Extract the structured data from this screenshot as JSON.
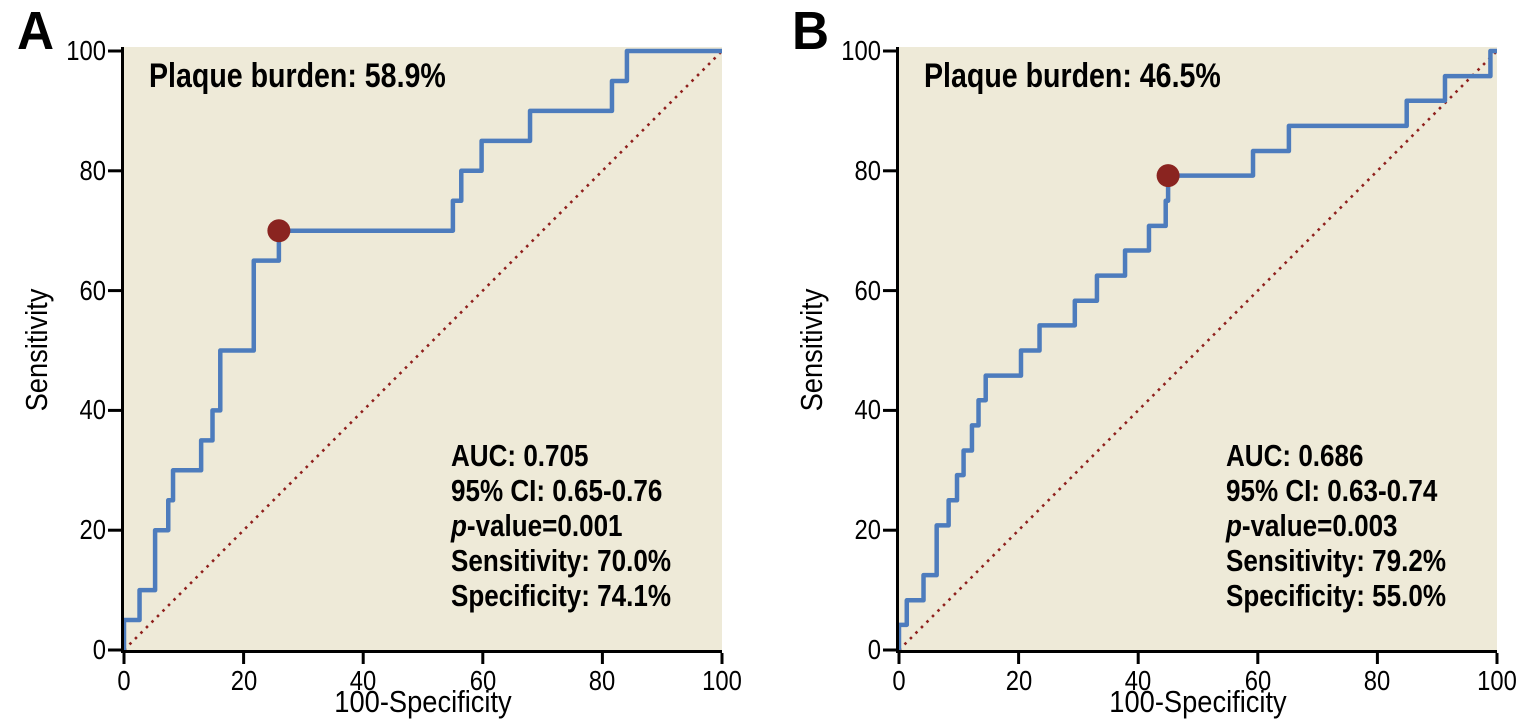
{
  "page": {
    "background": "#ffffff",
    "text_color": "#000000"
  },
  "panels": [
    {
      "letter": "A",
      "title": "Plaque burden: 58.9%",
      "x_axis_label": "100-Specificity",
      "y_axis_label": "Sensitivity",
      "stats": {
        "auc": "AUC: 0.705",
        "ci": "95% CI: 0.65-0.76",
        "p_italic": "p",
        "p_rest": "-value=0.001",
        "sensitivity": "Sensitivity: 70.0%",
        "specificity": "Specificity: 74.1%"
      }
    },
    {
      "letter": "B",
      "title": "Plaque burden: 46.5%",
      "x_axis_label": "100-Specificity",
      "y_axis_label": "Sensitivity",
      "stats": {
        "auc": "AUC: 0.686",
        "ci": "95% CI: 0.63-0.74",
        "p_italic": "p",
        "p_rest": "-value=0.003",
        "sensitivity": "Sensitivity: 79.2%",
        "specificity": "Specificity: 55.0%"
      }
    }
  ],
  "chart_data": [
    {
      "type": "line",
      "subtype": "roc_step_curve",
      "panel_label": "A",
      "title": "Plaque burden: 58.9%",
      "xlabel": "100-Specificity",
      "ylabel": "Sensitivity",
      "xlim": [
        0,
        100
      ],
      "ylim": [
        0,
        100
      ],
      "x_ticks": [
        0,
        20,
        40,
        60,
        80,
        100
      ],
      "y_ticks": [
        0,
        20,
        40,
        60,
        80,
        100
      ],
      "grid": false,
      "legend": "none",
      "plot_bg_color": "#eeead8",
      "curve_color": "#4d7cbd",
      "diagonal_color": "#8f201d",
      "marker_color": "#8a2420",
      "axis_color": "#000000",
      "roc_points": [
        [
          0,
          0
        ],
        [
          0,
          5
        ],
        [
          2.6,
          5
        ],
        [
          2.6,
          10
        ],
        [
          5.2,
          10
        ],
        [
          5.2,
          20
        ],
        [
          7.4,
          20
        ],
        [
          7.4,
          25
        ],
        [
          8.2,
          25
        ],
        [
          8.2,
          30
        ],
        [
          12.9,
          30
        ],
        [
          12.9,
          35
        ],
        [
          14.8,
          35
        ],
        [
          14.8,
          40
        ],
        [
          16.1,
          40
        ],
        [
          16.1,
          50
        ],
        [
          21.7,
          50
        ],
        [
          21.7,
          65
        ],
        [
          25.9,
          65
        ],
        [
          25.9,
          70
        ],
        [
          55,
          70
        ],
        [
          55,
          75
        ],
        [
          56.4,
          75
        ],
        [
          56.4,
          80
        ],
        [
          59.8,
          80
        ],
        [
          59.8,
          85
        ],
        [
          67.9,
          85
        ],
        [
          67.9,
          90
        ],
        [
          81.6,
          90
        ],
        [
          81.6,
          95
        ],
        [
          84.1,
          95
        ],
        [
          84.1,
          100
        ],
        [
          100,
          100
        ]
      ],
      "optimal_cutoff_point": {
        "x": 25.9,
        "y": 70.0
      },
      "reference_diagonal": [
        [
          0,
          0
        ],
        [
          100,
          100
        ]
      ],
      "annotations": [
        "Plaque burden: 58.9%",
        "AUC: 0.705",
        "95% CI: 0.65-0.76",
        "p-value=0.001",
        "Sensitivity: 70.0%",
        "Specificity: 74.1%"
      ]
    },
    {
      "type": "line",
      "subtype": "roc_step_curve",
      "panel_label": "B",
      "title": "Plaque burden: 46.5%",
      "xlabel": "100-Specificity",
      "ylabel": "Sensitivity",
      "xlim": [
        0,
        100
      ],
      "ylim": [
        0,
        100
      ],
      "x_ticks": [
        0,
        20,
        40,
        60,
        80,
        100
      ],
      "y_ticks": [
        0,
        20,
        40,
        60,
        80,
        100
      ],
      "grid": false,
      "legend": "none",
      "plot_bg_color": "#eeead8",
      "curve_color": "#4d7cbd",
      "diagonal_color": "#8f201d",
      "marker_color": "#8a2420",
      "axis_color": "#000000",
      "roc_points": [
        [
          0,
          0
        ],
        [
          0,
          4.2
        ],
        [
          1.3,
          4.2
        ],
        [
          1.3,
          8.3
        ],
        [
          4.1,
          8.3
        ],
        [
          4.1,
          12.5
        ],
        [
          6.3,
          12.5
        ],
        [
          6.3,
          20.8
        ],
        [
          8.3,
          20.8
        ],
        [
          8.3,
          25
        ],
        [
          9.7,
          25
        ],
        [
          9.7,
          29.2
        ],
        [
          10.8,
          29.2
        ],
        [
          10.8,
          33.3
        ],
        [
          12.2,
          33.3
        ],
        [
          12.2,
          37.5
        ],
        [
          13.3,
          37.5
        ],
        [
          13.3,
          41.7
        ],
        [
          14.5,
          41.7
        ],
        [
          14.5,
          45.8
        ],
        [
          20.4,
          45.8
        ],
        [
          20.4,
          50
        ],
        [
          23.5,
          50
        ],
        [
          23.5,
          54.2
        ],
        [
          29.4,
          54.2
        ],
        [
          29.4,
          58.3
        ],
        [
          33.1,
          58.3
        ],
        [
          33.1,
          62.5
        ],
        [
          37.8,
          62.5
        ],
        [
          37.8,
          66.7
        ],
        [
          41.8,
          66.7
        ],
        [
          41.8,
          70.8
        ],
        [
          44.6,
          70.8
        ],
        [
          44.6,
          75
        ],
        [
          45,
          75
        ],
        [
          45,
          79.2
        ],
        [
          59.2,
          79.2
        ],
        [
          59.2,
          83.3
        ],
        [
          65.2,
          83.3
        ],
        [
          65.2,
          87.5
        ],
        [
          84.9,
          87.5
        ],
        [
          84.9,
          91.7
        ],
        [
          91.3,
          91.7
        ],
        [
          91.3,
          95.8
        ],
        [
          98.9,
          95.8
        ],
        [
          98.9,
          100
        ],
        [
          100,
          100
        ]
      ],
      "optimal_cutoff_point": {
        "x": 45.0,
        "y": 79.2
      },
      "reference_diagonal": [
        [
          0,
          0
        ],
        [
          100,
          100
        ]
      ],
      "annotations": [
        "Plaque burden: 46.5%",
        "AUC: 0.686",
        "95% CI: 0.63-0.74",
        "p-value=0.003",
        "Sensitivity: 79.2%",
        "Specificity: 55.0%"
      ]
    }
  ]
}
